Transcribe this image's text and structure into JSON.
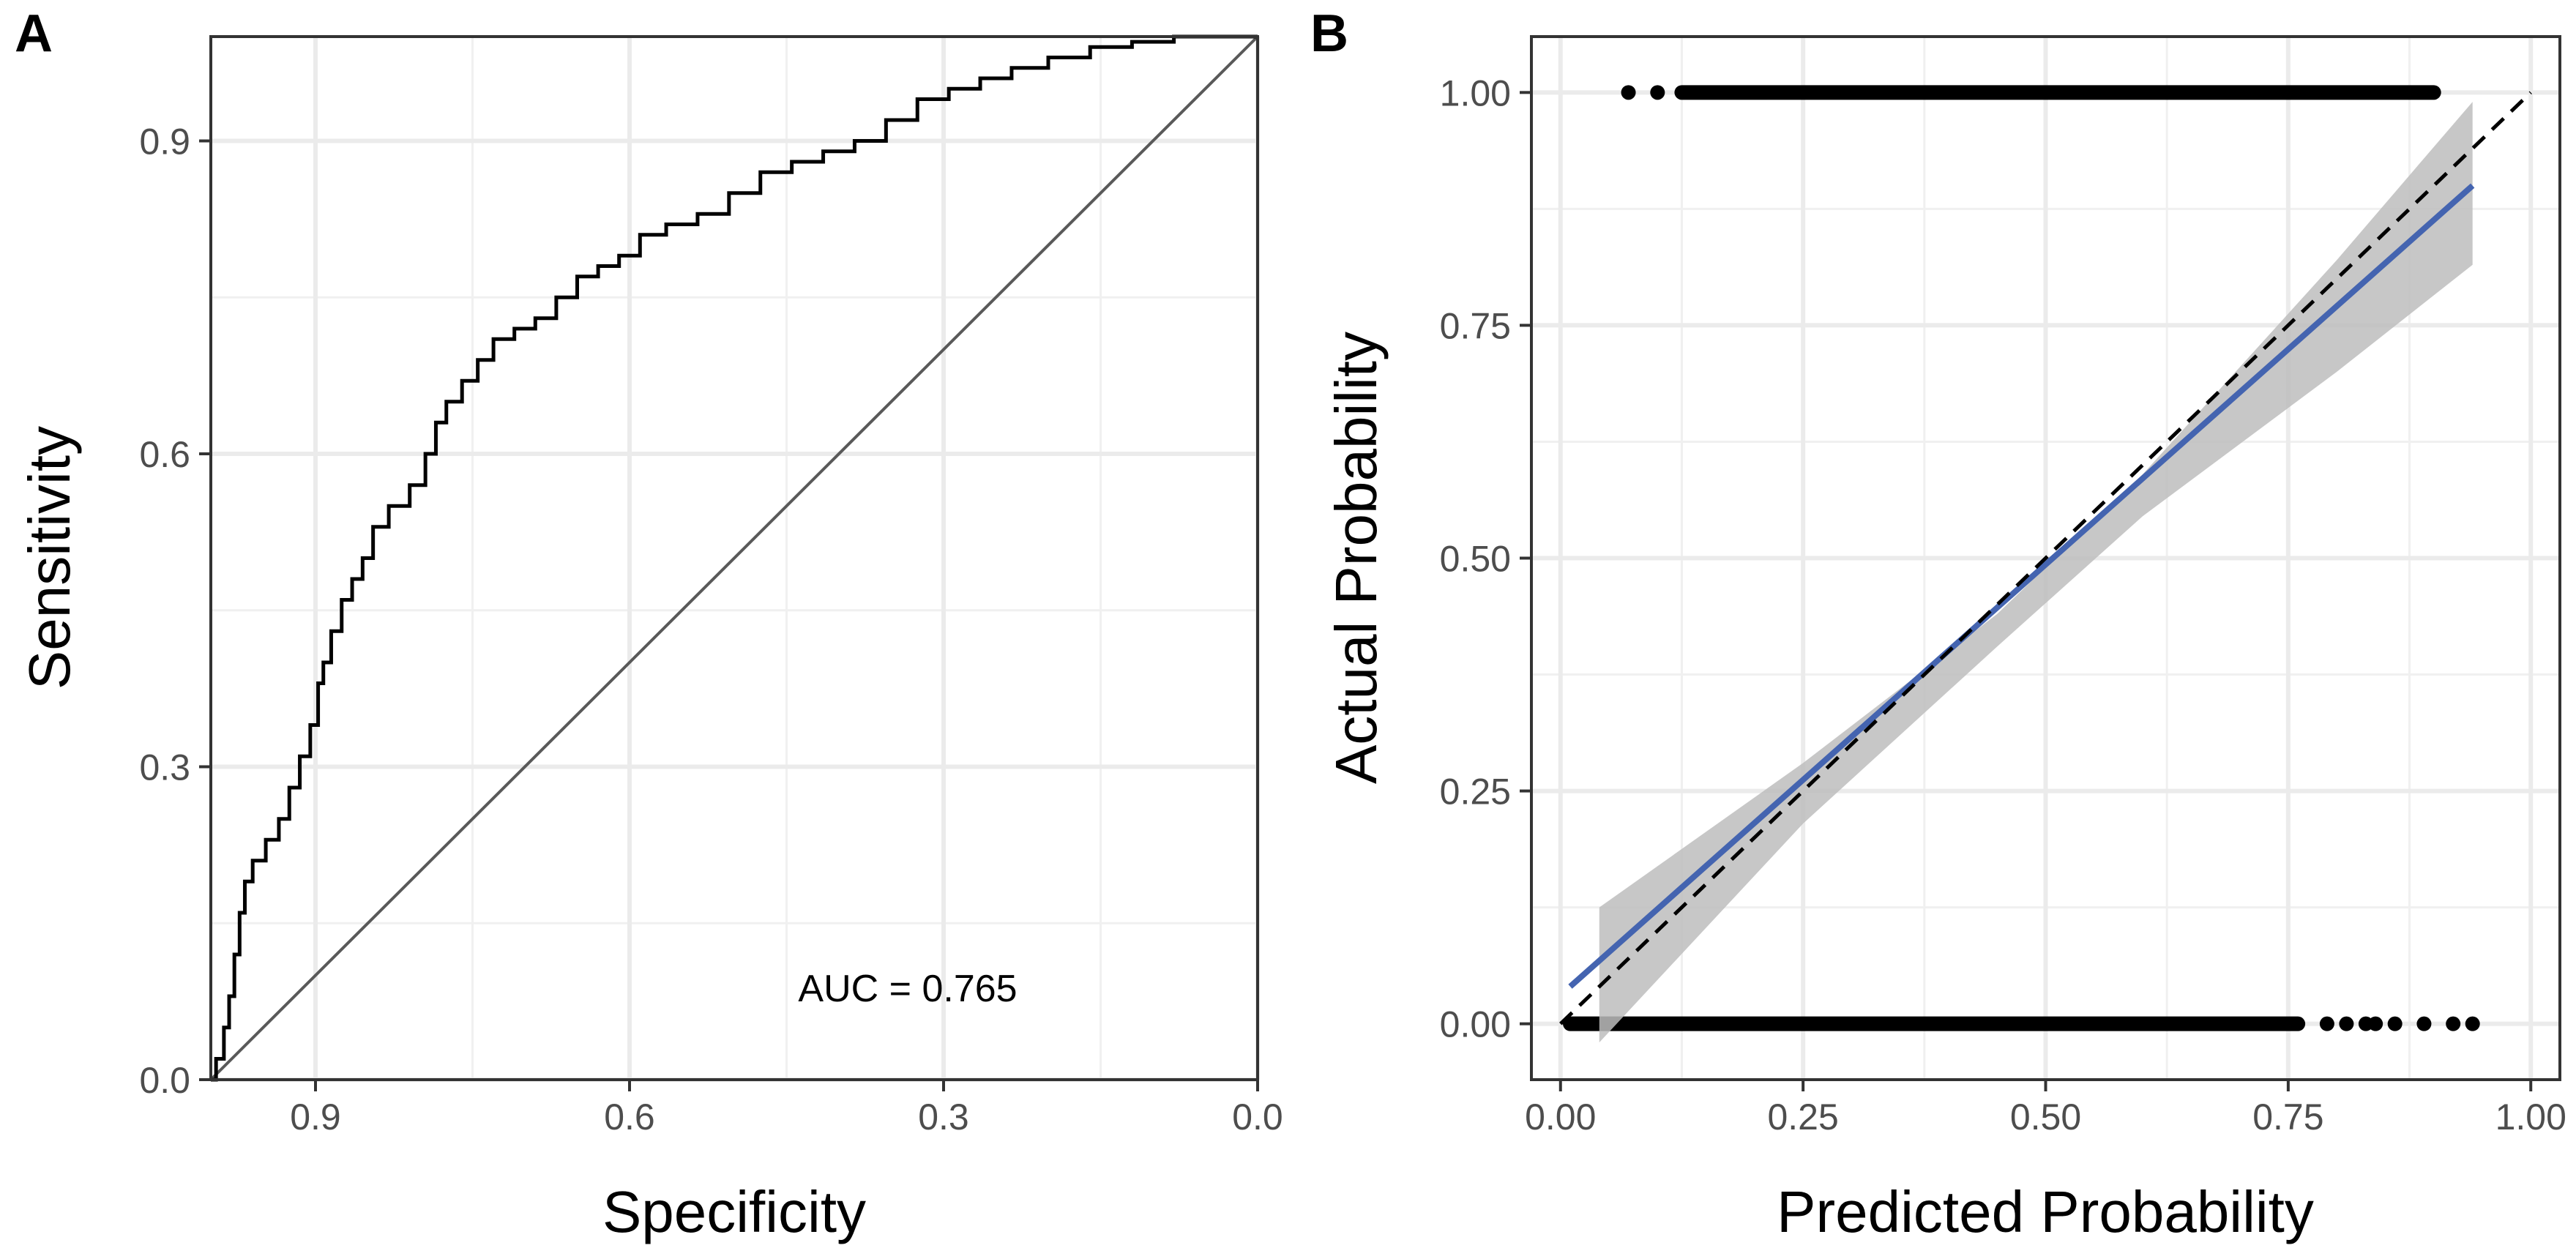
{
  "chart_data": [
    {
      "panel": "A",
      "type": "line",
      "xlabel": "Specificity",
      "ylabel": "Sensitivity",
      "x_reversed": true,
      "xlim": [
        1.0,
        0.0
      ],
      "ylim": [
        0.0,
        1.0
      ],
      "xticks": [
        0.9,
        0.6,
        0.3,
        0.0
      ],
      "xtick_labels": [
        "0.9",
        "0.6",
        "0.3",
        "0.0"
      ],
      "yticks": [
        0.0,
        0.3,
        0.6,
        0.9
      ],
      "ytick_labels": [
        "0.0",
        "0.3",
        "0.6",
        "0.9"
      ],
      "grid": true,
      "annotation": "AUC = 0.765",
      "series": [
        {
          "kind": "roc-curve",
          "color": "#000000",
          "points": [
            [
              1.0,
              0.0
            ],
            [
              0.99,
              0.02
            ],
            [
              0.985,
              0.05
            ],
            [
              0.98,
              0.08
            ],
            [
              0.975,
              0.12
            ],
            [
              0.97,
              0.16
            ],
            [
              0.965,
              0.19
            ],
            [
              0.955,
              0.21
            ],
            [
              0.94,
              0.23
            ],
            [
              0.93,
              0.25
            ],
            [
              0.92,
              0.28
            ],
            [
              0.91,
              0.31
            ],
            [
              0.9,
              0.34
            ],
            [
              0.895,
              0.38
            ],
            [
              0.89,
              0.4
            ],
            [
              0.88,
              0.43
            ],
            [
              0.87,
              0.46
            ],
            [
              0.86,
              0.48
            ],
            [
              0.85,
              0.5
            ],
            [
              0.84,
              0.53
            ],
            [
              0.82,
              0.55
            ],
            [
              0.8,
              0.57
            ],
            [
              0.79,
              0.6
            ],
            [
              0.78,
              0.63
            ],
            [
              0.77,
              0.65
            ],
            [
              0.75,
              0.67
            ],
            [
              0.74,
              0.69
            ],
            [
              0.72,
              0.71
            ],
            [
              0.7,
              0.72
            ],
            [
              0.68,
              0.73
            ],
            [
              0.66,
              0.75
            ],
            [
              0.64,
              0.77
            ],
            [
              0.62,
              0.78
            ],
            [
              0.6,
              0.79
            ],
            [
              0.58,
              0.81
            ],
            [
              0.55,
              0.82
            ],
            [
              0.52,
              0.83
            ],
            [
              0.49,
              0.85
            ],
            [
              0.46,
              0.87
            ],
            [
              0.43,
              0.88
            ],
            [
              0.4,
              0.89
            ],
            [
              0.37,
              0.9
            ],
            [
              0.34,
              0.92
            ],
            [
              0.31,
              0.94
            ],
            [
              0.28,
              0.95
            ],
            [
              0.25,
              0.96
            ],
            [
              0.22,
              0.97
            ],
            [
              0.18,
              0.98
            ],
            [
              0.14,
              0.99
            ],
            [
              0.1,
              0.995
            ],
            [
              0.06,
              1.0
            ],
            [
              0.0,
              1.0
            ]
          ]
        },
        {
          "kind": "reference-diagonal",
          "color": "#595959",
          "points": [
            [
              1.0,
              0.0
            ],
            [
              0.0,
              1.0
            ]
          ]
        }
      ]
    },
    {
      "panel": "B",
      "type": "scatter",
      "xlabel": "Predicted Probability",
      "ylabel": "Actual Probability",
      "xlim": [
        -0.03,
        1.03
      ],
      "ylim": [
        -0.06,
        1.06
      ],
      "xticks": [
        0.0,
        0.25,
        0.5,
        0.75,
        1.0
      ],
      "xtick_labels": [
        "0.00",
        "0.25",
        "0.50",
        "0.75",
        "1.00"
      ],
      "yticks": [
        0.0,
        0.25,
        0.5,
        0.75,
        1.0
      ],
      "ytick_labels": [
        "0.00",
        "0.25",
        "0.50",
        "0.75",
        "1.00"
      ],
      "grid": true,
      "points_y1": {
        "y": 1.0,
        "x_min": 0.07,
        "x_max": 0.9,
        "sparse_x": [
          0.07,
          0.1
        ]
      },
      "points_y0": {
        "y": 0.0,
        "x_min": 0.01,
        "x_max": 0.76,
        "sparse_x": [
          0.79,
          0.81,
          0.83,
          0.84,
          0.86,
          0.89,
          0.92,
          0.94
        ]
      },
      "fit_line": {
        "color": "#4464b0",
        "from": [
          0.01,
          0.04
        ],
        "to": [
          0.94,
          0.9
        ]
      },
      "confidence_band": {
        "color": "#bdbdbd",
        "upper": [
          [
            0.04,
            0.125
          ],
          [
            0.25,
            0.28
          ],
          [
            0.45,
            0.44
          ],
          [
            0.6,
            0.59
          ],
          [
            0.8,
            0.82
          ],
          [
            0.94,
            0.99
          ]
        ],
        "lower": [
          [
            0.04,
            -0.02
          ],
          [
            0.25,
            0.215
          ],
          [
            0.45,
            0.405
          ],
          [
            0.6,
            0.545
          ],
          [
            0.8,
            0.7
          ],
          [
            0.94,
            0.815
          ]
        ]
      },
      "reference_line": {
        "color": "#000000",
        "style": "dashed",
        "from": [
          0.0,
          0.0
        ],
        "to": [
          1.0,
          1.0
        ]
      }
    }
  ]
}
